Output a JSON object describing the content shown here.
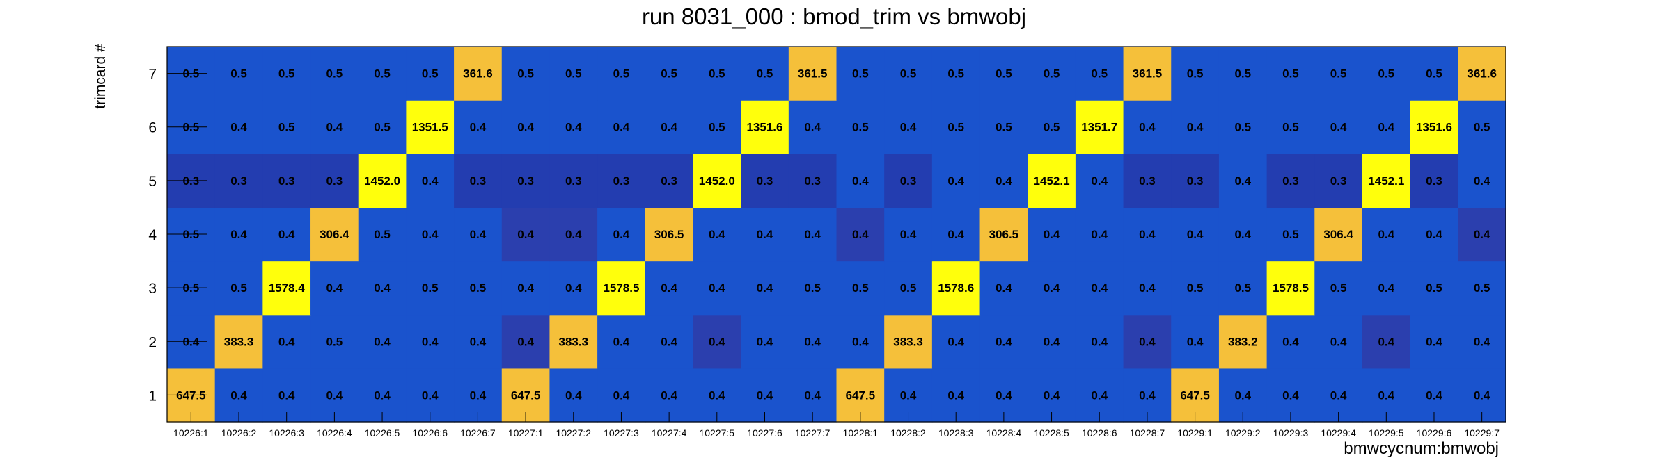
{
  "chart_data": {
    "type": "heatmap",
    "title": "run 8031_000 : bmod_trim vs bmwobj",
    "xlabel": "bmwcycnum:bmwobj",
    "ylabel": "trimcard #",
    "x_categories": [
      "10226:1",
      "10226:2",
      "10226:3",
      "10226:4",
      "10226:5",
      "10226:6",
      "10226:7",
      "10227:1",
      "10227:2",
      "10227:3",
      "10227:4",
      "10227:5",
      "10227:6",
      "10227:7",
      "10228:1",
      "10228:2",
      "10228:3",
      "10228:4",
      "10228:5",
      "10228:6",
      "10228:7",
      "10229:1",
      "10229:2",
      "10229:3",
      "10229:4",
      "10229:5",
      "10229:6",
      "10229:7"
    ],
    "y_categories": [
      "1",
      "2",
      "3",
      "4",
      "5",
      "6",
      "7"
    ],
    "values": [
      [
        647.5,
        0.4,
        0.4,
        0.4,
        0.4,
        0.4,
        0.4,
        647.5,
        0.4,
        0.4,
        0.4,
        0.4,
        0.4,
        0.4,
        647.5,
        0.4,
        0.4,
        0.4,
        0.4,
        0.4,
        0.4,
        647.5,
        0.4,
        0.4,
        0.4,
        0.4,
        0.4,
        0.4
      ],
      [
        0.4,
        383.3,
        0.4,
        0.5,
        0.4,
        0.4,
        0.4,
        0.4,
        383.3,
        0.4,
        0.4,
        0.4,
        0.4,
        0.4,
        0.4,
        383.3,
        0.4,
        0.4,
        0.4,
        0.4,
        0.4,
        0.4,
        383.2,
        0.4,
        0.4,
        0.4,
        0.4,
        0.4
      ],
      [
        0.5,
        0.5,
        1578.4,
        0.4,
        0.4,
        0.5,
        0.5,
        0.4,
        0.4,
        1578.5,
        0.4,
        0.4,
        0.4,
        0.5,
        0.5,
        0.5,
        1578.6,
        0.4,
        0.4,
        0.4,
        0.4,
        0.5,
        0.5,
        1578.5,
        0.5,
        0.4,
        0.5,
        0.5
      ],
      [
        0.5,
        0.4,
        0.4,
        306.4,
        0.5,
        0.4,
        0.4,
        0.4,
        0.4,
        0.4,
        306.5,
        0.4,
        0.4,
        0.4,
        0.4,
        0.4,
        0.4,
        306.5,
        0.4,
        0.4,
        0.4,
        0.4,
        0.4,
        0.5,
        306.4,
        0.4,
        0.4,
        0.4
      ],
      [
        0.3,
        0.3,
        0.3,
        0.3,
        1452.0,
        0.4,
        0.3,
        0.3,
        0.3,
        0.3,
        0.3,
        1452.0,
        0.3,
        0.3,
        0.4,
        0.3,
        0.4,
        0.4,
        1452.1,
        0.4,
        0.3,
        0.3,
        0.4,
        0.3,
        0.3,
        1452.1,
        0.3,
        0.4
      ],
      [
        0.5,
        0.4,
        0.5,
        0.4,
        0.5,
        1351.5,
        0.4,
        0.4,
        0.4,
        0.4,
        0.4,
        0.5,
        1351.6,
        0.4,
        0.5,
        0.4,
        0.5,
        0.5,
        0.5,
        1351.7,
        0.4,
        0.4,
        0.5,
        0.5,
        0.4,
        0.4,
        1351.6,
        0.5
      ],
      [
        0.5,
        0.5,
        0.5,
        0.5,
        0.5,
        0.5,
        361.6,
        0.5,
        0.5,
        0.5,
        0.5,
        0.5,
        0.5,
        361.5,
        0.5,
        0.5,
        0.5,
        0.5,
        0.5,
        0.5,
        361.5,
        0.5,
        0.5,
        0.5,
        0.5,
        0.5,
        0.5,
        361.6
      ]
    ],
    "dark_cells": [
      [
        1,
        7
      ],
      [
        1,
        11
      ],
      [
        1,
        20
      ],
      [
        1,
        25
      ],
      [
        3,
        7
      ],
      [
        3,
        8
      ],
      [
        3,
        14
      ],
      [
        3,
        27
      ]
    ],
    "colors": {
      "dark": "#2b3fae",
      "mid": "#1a53cd",
      "mid_row": "#233db0",
      "amber": "#f5c03a",
      "yellow": "#ffff0c"
    },
    "grid": false,
    "legend": "none"
  }
}
